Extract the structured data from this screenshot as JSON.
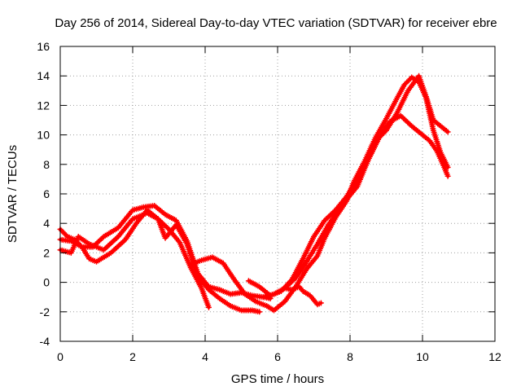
{
  "chart_data": {
    "type": "scatter",
    "title": "Day 256 of 2014, Sidereal Day-to-day VTEC variation (SDTVAR) for receiver ebre",
    "xlabel": "GPS time / hours",
    "ylabel": "SDTVAR / TECUs",
    "xlim": [
      0,
      12
    ],
    "ylim": [
      -4,
      16
    ],
    "xticks": [
      "0",
      "2",
      "4",
      "6",
      "8",
      "10",
      "12"
    ],
    "yticks": [
      "-4",
      "-2",
      "0",
      "2",
      "4",
      "6",
      "8",
      "10",
      "12",
      "14",
      "16"
    ],
    "grid": true,
    "legend": "none",
    "marker": "plus",
    "color": "#ff0000",
    "series": [
      {
        "x": [
          0.0,
          0.2,
          0.4,
          0.6,
          0.8,
          1.0,
          1.4,
          1.8,
          2.1,
          2.4,
          2.7,
          3.0,
          3.3,
          3.6,
          3.9,
          4.1
        ],
        "y": [
          3.6,
          3.1,
          2.9,
          2.4,
          1.6,
          1.4,
          2.0,
          2.9,
          4.0,
          4.9,
          4.3,
          3.6,
          2.7,
          1.0,
          -0.4,
          -1.7
        ]
      },
      {
        "x": [
          0.0,
          0.3,
          0.6,
          0.9,
          1.2,
          1.6,
          2.0,
          2.3,
          2.6,
          2.9,
          3.2,
          3.5,
          3.8,
          4.1,
          4.4,
          4.7,
          5.0,
          5.3,
          5.6,
          5.8
        ],
        "y": [
          2.9,
          2.8,
          2.4,
          2.4,
          3.1,
          3.7,
          4.9,
          5.1,
          5.2,
          4.6,
          4.2,
          2.8,
          0.6,
          -0.3,
          -0.5,
          -0.8,
          -0.7,
          -0.9,
          -1.0,
          -1.1
        ]
      },
      {
        "x": [
          0.0,
          0.3,
          0.5,
          0.8,
          1.2,
          1.6,
          2.0,
          2.4,
          2.7,
          2.9,
          3.2,
          3.5,
          3.8,
          4.1,
          4.4,
          4.7,
          5.0,
          5.3,
          5.5
        ],
        "y": [
          2.2,
          2.0,
          3.1,
          2.6,
          2.2,
          3.1,
          4.3,
          4.7,
          4.3,
          3.0,
          3.9,
          2.6,
          0.4,
          -0.5,
          -1.1,
          -1.6,
          -1.9,
          -1.9,
          -2.0
        ]
      },
      {
        "x": [
          3.6,
          3.9,
          4.2,
          4.5,
          4.8,
          5.1,
          5.4,
          5.7,
          5.9,
          6.2,
          6.5,
          6.8,
          7.1,
          7.3,
          7.6,
          7.9,
          8.1,
          8.4,
          8.7,
          9.0,
          9.3,
          9.5,
          9.7,
          9.9,
          10.1,
          10.3,
          10.5,
          10.7
        ],
        "y": [
          1.2,
          1.5,
          1.7,
          1.3,
          0.2,
          -0.8,
          -1.3,
          -1.6,
          -1.9,
          -1.3,
          -0.3,
          0.9,
          1.8,
          3.0,
          4.4,
          5.5,
          6.8,
          8.2,
          9.8,
          11.1,
          12.5,
          13.4,
          13.9,
          13.6,
          12.5,
          10.3,
          8.8,
          7.8
        ]
      },
      {
        "x": [
          5.2,
          5.5,
          5.8,
          6.1,
          6.4,
          6.7,
          7.0,
          7.3,
          7.6,
          7.9,
          8.2,
          8.5,
          8.8,
          9.1,
          9.4,
          9.7,
          10.0,
          10.2,
          10.4,
          10.6,
          10.7
        ],
        "y": [
          0.1,
          -0.3,
          -0.9,
          -0.6,
          0.2,
          1.6,
          3.1,
          4.2,
          4.9,
          5.8,
          7.0,
          8.3,
          9.8,
          10.9,
          11.3,
          10.6,
          10.0,
          9.6,
          8.9,
          7.8,
          7.2
        ]
      },
      {
        "x": [
          5.6,
          5.9,
          6.2,
          6.5,
          6.8,
          7.1,
          7.4,
          7.6,
          7.9,
          8.2,
          8.5,
          8.8,
          9.0,
          9.3,
          9.6,
          9.9,
          10.1,
          10.3,
          10.5,
          10.7
        ],
        "y": [
          -1.0,
          -0.8,
          -0.4,
          0.3,
          1.4,
          2.6,
          3.9,
          4.6,
          5.6,
          6.5,
          8.3,
          9.8,
          10.3,
          11.5,
          13.0,
          14.0,
          12.6,
          11.0,
          10.6,
          10.2
        ]
      },
      {
        "x": [
          6.2,
          6.4,
          6.6,
          6.7,
          6.9,
          7.1,
          7.2
        ],
        "y": [
          -0.4,
          -0.5,
          -0.3,
          -0.6,
          -0.9,
          -1.5,
          -1.4
        ]
      }
    ]
  }
}
